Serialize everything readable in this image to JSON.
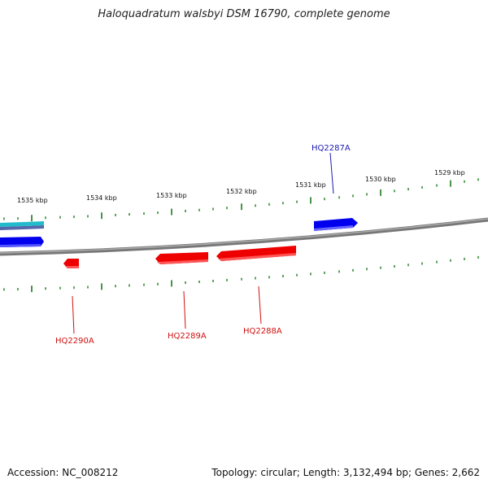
{
  "title": "Haloquadratum walsbyi DSM 16790, complete genome",
  "footer": {
    "accession": "Accession: NC_008212",
    "summary": "Topology: circular; Length: 3,132,494 bp; Genes: 2,662"
  },
  "colors": {
    "forward_gene": "#0000ee",
    "reverse_gene": "#ee0000",
    "backbone": "#808080",
    "tick": "#1a7a1a",
    "other_track": "#22bbcc"
  },
  "scale_labels": [
    "1535 kbp",
    "1534 kbp",
    "1533 kbp",
    "1532 kbp",
    "1531 kbp",
    "1530 kbp",
    "1529 kbp"
  ],
  "genes": [
    {
      "label": "HQ2287A",
      "strand": "forward"
    },
    {
      "label": "HQ2288A",
      "strand": "reverse"
    },
    {
      "label": "HQ2289A",
      "strand": "reverse"
    },
    {
      "label": "HQ2290A",
      "strand": "reverse"
    }
  ]
}
